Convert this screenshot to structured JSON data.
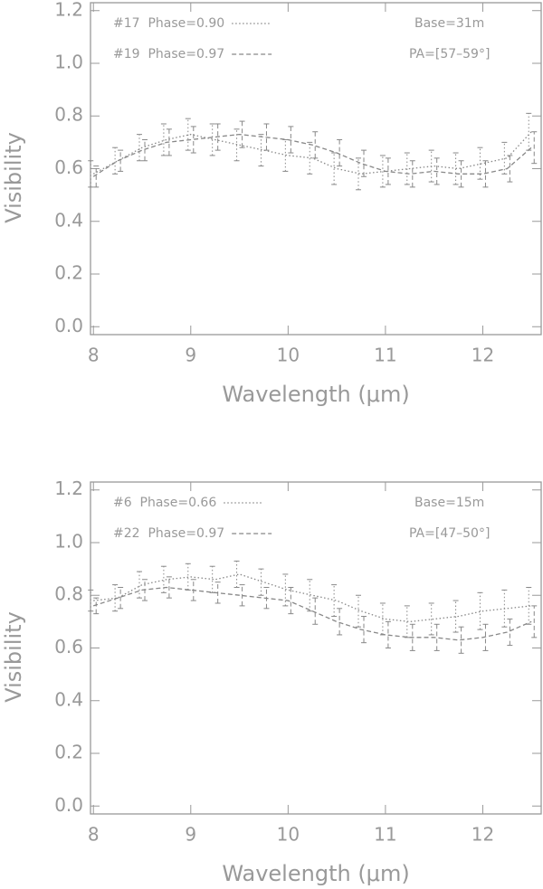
{
  "chart_data": [
    {
      "type": "line",
      "x": [
        8.0,
        8.25,
        8.5,
        8.75,
        9.0,
        9.25,
        9.5,
        9.75,
        10.0,
        10.25,
        10.5,
        10.75,
        11.0,
        11.25,
        11.5,
        11.75,
        12.0,
        12.25,
        12.5
      ],
      "series": [
        {
          "name": "#17  Phase=0.90",
          "color": "#888888",
          "linestyle": "dotted",
          "values": [
            0.58,
            0.63,
            0.68,
            0.71,
            0.73,
            0.71,
            0.69,
            0.67,
            0.65,
            0.64,
            0.6,
            0.58,
            0.59,
            0.6,
            0.61,
            0.6,
            0.62,
            0.64,
            0.74
          ],
          "errors": [
            0.05,
            0.05,
            0.05,
            0.06,
            0.06,
            0.06,
            0.06,
            0.06,
            0.06,
            0.06,
            0.06,
            0.06,
            0.06,
            0.06,
            0.06,
            0.06,
            0.06,
            0.06,
            0.07
          ]
        },
        {
          "name": "#19  Phase=0.97",
          "color": "#888888",
          "linestyle": "dashed",
          "values": [
            0.57,
            0.63,
            0.67,
            0.7,
            0.71,
            0.72,
            0.73,
            0.72,
            0.71,
            0.69,
            0.66,
            0.62,
            0.59,
            0.58,
            0.59,
            0.58,
            0.58,
            0.6,
            0.68
          ],
          "errors": [
            0.04,
            0.04,
            0.04,
            0.05,
            0.05,
            0.05,
            0.05,
            0.05,
            0.05,
            0.05,
            0.05,
            0.05,
            0.05,
            0.05,
            0.05,
            0.05,
            0.05,
            0.05,
            0.06
          ]
        }
      ],
      "annotations": [
        "Base=31m",
        "PA=[57–59°]"
      ],
      "xlabel": "Wavelength (μm)",
      "ylabel": "Visibility",
      "xlim": [
        7.97,
        12.6
      ],
      "ylim": [
        -0.03,
        1.23
      ],
      "xticks": [
        8,
        9,
        10,
        11,
        12
      ],
      "yticks": [
        {
          "value": 0,
          "label": "0.0"
        },
        {
          "value": 0.2,
          "label": "0.2"
        },
        {
          "value": 0.4,
          "label": "0.4"
        },
        {
          "value": 0.6,
          "label": "0.6"
        },
        {
          "value": 0.8,
          "label": "0.8"
        },
        {
          "value": 1,
          "label": "1.0"
        },
        {
          "value": 1.2,
          "label": "1.2"
        }
      ]
    },
    {
      "type": "line",
      "x": [
        8.0,
        8.25,
        8.5,
        8.75,
        9.0,
        9.25,
        9.5,
        9.75,
        10.0,
        10.25,
        10.5,
        10.75,
        11.0,
        11.25,
        11.5,
        11.75,
        12.0,
        12.25,
        12.5
      ],
      "series": [
        {
          "name": "#6  Phase=0.66",
          "color": "#888888",
          "linestyle": "dotted",
          "values": [
            0.78,
            0.79,
            0.84,
            0.86,
            0.87,
            0.86,
            0.88,
            0.85,
            0.82,
            0.8,
            0.78,
            0.74,
            0.71,
            0.7,
            0.71,
            0.72,
            0.74,
            0.75,
            0.76
          ],
          "errors": [
            0.04,
            0.05,
            0.05,
            0.05,
            0.05,
            0.05,
            0.05,
            0.05,
            0.06,
            0.06,
            0.06,
            0.06,
            0.06,
            0.06,
            0.06,
            0.06,
            0.07,
            0.07,
            0.07
          ]
        },
        {
          "name": "#22  Phase=0.97",
          "color": "#888888",
          "linestyle": "dashed",
          "values": [
            0.76,
            0.79,
            0.82,
            0.83,
            0.82,
            0.81,
            0.8,
            0.79,
            0.78,
            0.74,
            0.7,
            0.67,
            0.65,
            0.64,
            0.64,
            0.63,
            0.64,
            0.66,
            0.7
          ],
          "errors": [
            0.03,
            0.04,
            0.04,
            0.04,
            0.04,
            0.04,
            0.04,
            0.04,
            0.05,
            0.05,
            0.05,
            0.05,
            0.05,
            0.05,
            0.05,
            0.05,
            0.05,
            0.05,
            0.06
          ]
        }
      ],
      "annotations": [
        "Base=15m",
        "PA=[47–50°]"
      ],
      "xlabel": "Wavelength (μm)",
      "ylabel": "Visibility",
      "xlim": [
        7.97,
        12.6
      ],
      "ylim": [
        -0.03,
        1.23
      ],
      "xticks": [
        8,
        9,
        10,
        11,
        12
      ],
      "yticks": [
        {
          "value": 0,
          "label": "0.0"
        },
        {
          "value": 0.2,
          "label": "0.2"
        },
        {
          "value": 0.4,
          "label": "0.4"
        },
        {
          "value": 0.6,
          "label": "0.6"
        },
        {
          "value": 0.8,
          "label": "0.8"
        },
        {
          "value": 1,
          "label": "1.0"
        },
        {
          "value": 1.2,
          "label": "1.2"
        }
      ]
    }
  ]
}
